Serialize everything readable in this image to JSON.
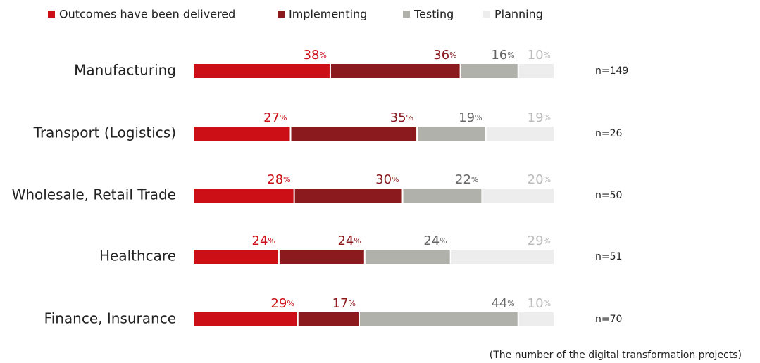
{
  "chart_data": {
    "type": "stacked-barh",
    "categories": [
      "Manufacturing",
      "Transport (Logistics)",
      "Wholesale, Retail Trade",
      "Healthcare",
      "Finance, Insurance"
    ],
    "series": [
      {
        "name": "Outcomes have been delivered",
        "color": "#cc0e17",
        "label_color": "#cc0e17",
        "values": [
          38,
          27,
          28,
          24,
          29
        ],
        "value_labels": [
          "38%",
          "27%",
          "28%",
          "24%",
          "29%"
        ]
      },
      {
        "name": "Implementing",
        "color": "#8b1a1e",
        "label_color": "#8b1a1e",
        "values": [
          36,
          35,
          30,
          24,
          17
        ],
        "value_labels": [
          "36%",
          "35%",
          "30%",
          "24%",
          "17%"
        ]
      },
      {
        "name": "Testing",
        "color": "#b1b1ac",
        "label_color": "#666666",
        "values": [
          16,
          19,
          22,
          24,
          44
        ],
        "value_labels": [
          "16%",
          "19%",
          "22%",
          "24%",
          "44%"
        ]
      },
      {
        "name": "Planning",
        "color": "#ededed",
        "label_color": "#bbbbbb",
        "values": [
          10,
          19,
          20,
          29,
          10
        ],
        "value_labels": [
          "10%",
          "19%",
          "20%",
          "29%",
          "10%"
        ]
      }
    ],
    "sample_sizes": [
      "n=149",
      "n=26",
      "n=50",
      "n=51",
      "n=70"
    ],
    "footnote": "(The number of the digital transformation projects)"
  }
}
